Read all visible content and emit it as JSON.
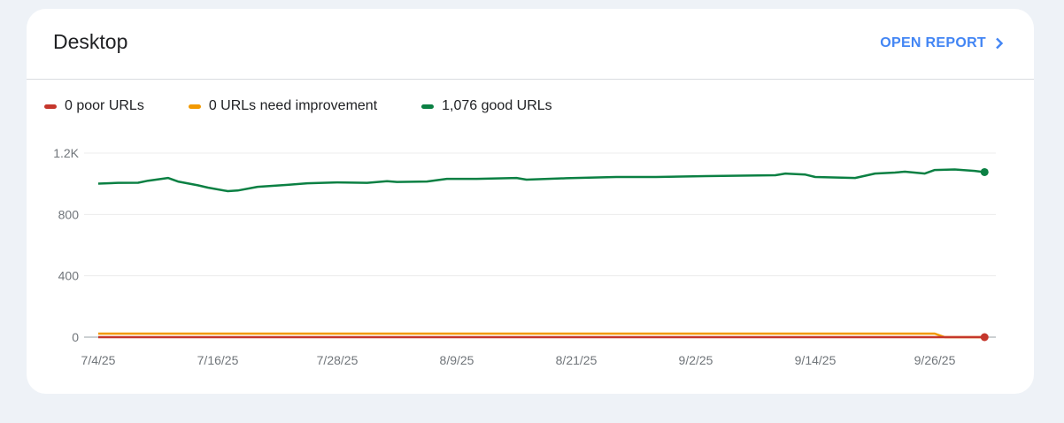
{
  "card": {
    "title": "Desktop",
    "open_report_label": "OPEN REPORT",
    "open_report_icon": "chevron-right-icon"
  },
  "legend": [
    {
      "label": "0 poor URLs",
      "color": "#c5372c"
    },
    {
      "label": "0 URLs need improvement",
      "color": "#f29900"
    },
    {
      "label": "1,076 good URLs",
      "color": "#0b8043"
    }
  ],
  "chart_data": {
    "type": "line",
    "title": "Desktop",
    "xlabel": "",
    "ylabel": "",
    "x_unit": "days since 7/4/25",
    "xlim": [
      0,
      89
    ],
    "ylim": [
      0,
      1200
    ],
    "y_ticks": [
      {
        "value": 0,
        "label": "0"
      },
      {
        "value": 400,
        "label": "400"
      },
      {
        "value": 800,
        "label": "800"
      },
      {
        "value": 1200,
        "label": "1.2K"
      }
    ],
    "x_ticks": [
      {
        "value": 0,
        "label": "7/4/25"
      },
      {
        "value": 12,
        "label": "7/16/25"
      },
      {
        "value": 24,
        "label": "7/28/25"
      },
      {
        "value": 36,
        "label": "8/9/25"
      },
      {
        "value": 48,
        "label": "8/21/25"
      },
      {
        "value": 60,
        "label": "9/2/25"
      },
      {
        "value": 72,
        "label": "9/14/25"
      },
      {
        "value": 84,
        "label": "9/26/25"
      }
    ],
    "grid": true,
    "legend_position": "top-left",
    "series": [
      {
        "name": "poor URLs",
        "color": "#c5372c",
        "end_marker": true,
        "x": [
          0,
          89
        ],
        "values": [
          0,
          0
        ]
      },
      {
        "name": "URLs need improvement",
        "color": "#f29900",
        "end_marker": false,
        "x": [
          0,
          84,
          85,
          89
        ],
        "values": [
          23,
          23,
          0,
          0
        ]
      },
      {
        "name": "good URLs",
        "color": "#0b8043",
        "end_marker": true,
        "x": [
          0,
          2,
          4,
          5,
          7,
          8,
          10,
          11,
          13,
          14,
          16,
          19,
          21,
          24,
          27,
          29,
          30,
          33,
          35,
          38,
          42,
          43,
          47,
          52,
          56,
          61,
          68,
          69,
          71,
          72,
          76,
          78,
          80,
          81,
          83,
          84,
          86,
          88,
          89
        ],
        "values": [
          1001,
          1006,
          1007,
          1020,
          1038,
          1015,
          990,
          975,
          952,
          956,
          980,
          993,
          1003,
          1009,
          1006,
          1017,
          1012,
          1015,
          1032,
          1032,
          1038,
          1027,
          1036,
          1044,
          1044,
          1050,
          1056,
          1067,
          1060,
          1044,
          1038,
          1067,
          1073,
          1079,
          1067,
          1090,
          1093,
          1084,
          1076
        ]
      }
    ]
  }
}
